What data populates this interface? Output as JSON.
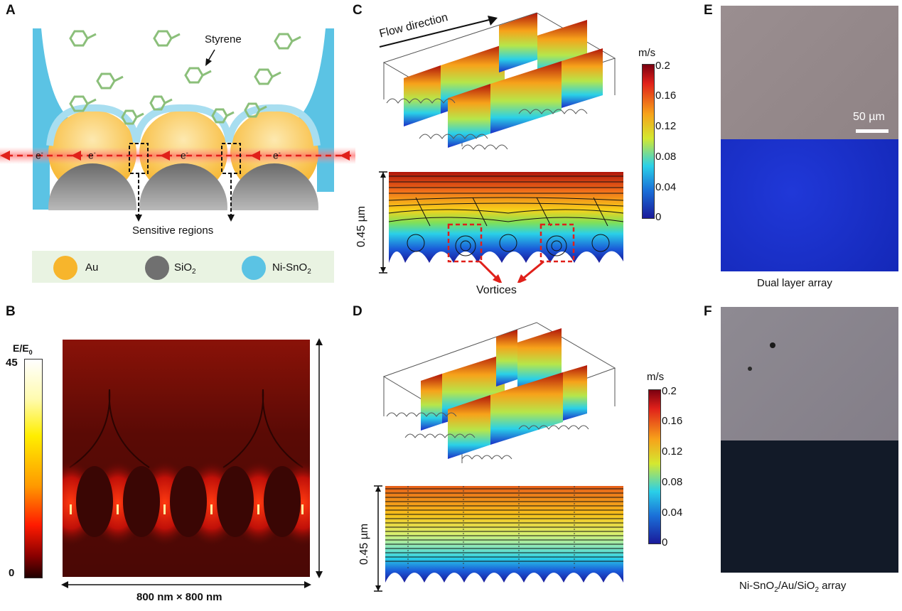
{
  "panels": {
    "a": {
      "label": "A",
      "styrene_label": "Styrene",
      "electron_label": "e",
      "electron_sup": "-",
      "sensitive_label": "Sensitive regions",
      "legend": [
        {
          "name": "Au",
          "color": "#f7b52c"
        },
        {
          "name": "SiO",
          "sub": "2",
          "color": "#707070"
        },
        {
          "name": "Ni-SnO",
          "sub": "2",
          "color": "#5bc3e4"
        }
      ]
    },
    "b": {
      "label": "B",
      "colorbar_title": "E/E",
      "colorbar_title_sub": "0",
      "colorbar_max": "45",
      "colorbar_min": "0",
      "size_label": "800 nm × 800 nm"
    },
    "c": {
      "label": "C",
      "flow_label": "Flow direction",
      "unit": "m/s",
      "ticks": [
        "0.2",
        "0.16",
        "0.12",
        "0.08",
        "0.04",
        "0"
      ],
      "scale_label": "0.45 µm",
      "vortices_label": "Vortices"
    },
    "d": {
      "label": "D",
      "unit": "m/s",
      "ticks": [
        "0.2",
        "0.16",
        "0.12",
        "0.08",
        "0.04",
        "0"
      ],
      "scale_label": "0.45 µm"
    },
    "e": {
      "label": "E",
      "scalebar_label": "50 µm",
      "caption": "Dual layer array"
    },
    "f": {
      "label": "F",
      "caption_main": "Ni-SnO",
      "caption_sub1": "2",
      "caption_mid": "/Au/SiO",
      "caption_sub2": "2",
      "caption_end": " array"
    }
  },
  "colors": {
    "au": "#f7b52c",
    "sio2": "#707070",
    "nisno2": "#5bc3e4",
    "arrow_red": "#e0201a",
    "field_dark": "#5a0a05"
  }
}
